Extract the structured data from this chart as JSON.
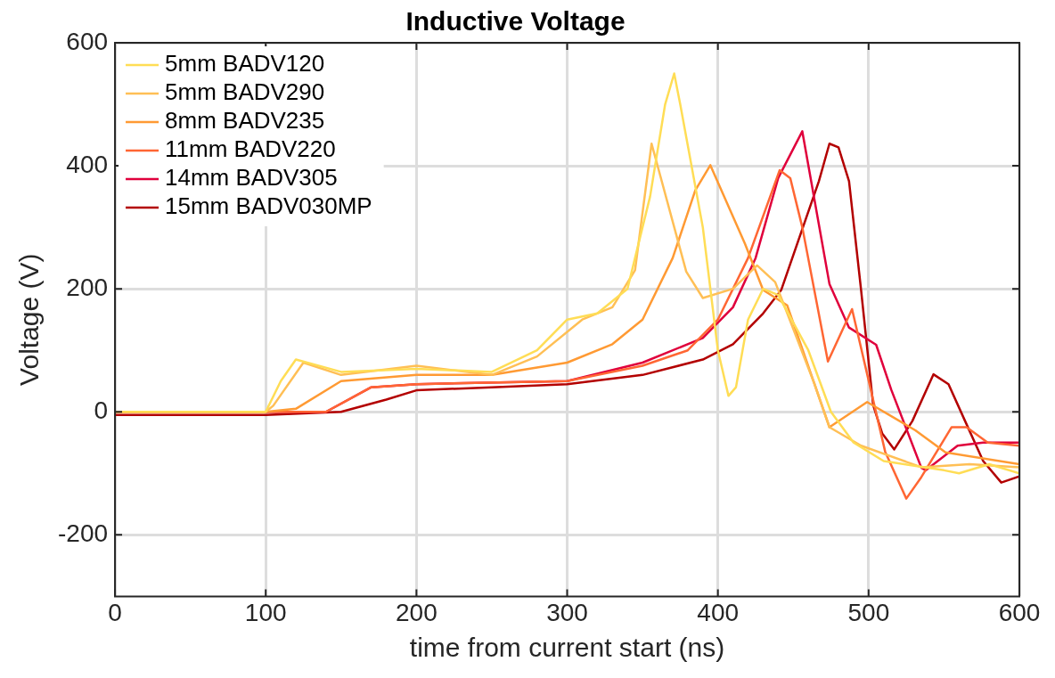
{
  "chart_data": {
    "type": "line",
    "title": "Inductive Voltage",
    "xlabel": "time from current start (ns)",
    "ylabel": "Voltage (V)",
    "xlim": [
      0,
      600
    ],
    "xticks": [
      0,
      100,
      200,
      300,
      400,
      500,
      600
    ],
    "ylim": [
      -300,
      600
    ],
    "yticks": [
      -200,
      0,
      200,
      400,
      600
    ],
    "grid": true,
    "legend": "top left",
    "marker": "none",
    "line_style": "solid",
    "series": [
      {
        "name": "5mm BADV120",
        "color": "#ffdd55",
        "x": [
          0,
          50,
          100,
          110,
          120,
          150,
          200,
          250,
          280,
          300,
          320,
          340,
          355,
          365,
          371,
          375,
          390,
          400,
          407,
          412,
          420,
          430,
          440,
          460,
          475,
          490,
          510,
          550,
          560,
          580,
          600
        ],
        "values": [
          0,
          0,
          0,
          50,
          85,
          65,
          70,
          65,
          100,
          150,
          160,
          200,
          350,
          500,
          550,
          500,
          300,
          100,
          26,
          40,
          150,
          200,
          190,
          100,
          0,
          -50,
          -80,
          -95,
          -100,
          -85,
          -100
        ]
      },
      {
        "name": "5mm BADV290",
        "color": "#ffbf55",
        "x": [
          0,
          50,
          100,
          105,
          125,
          150,
          200,
          250,
          280,
          310,
          330,
          345,
          356,
          379,
          390,
          410,
          426,
          438,
          464,
          474,
          495,
          535,
          567,
          600
        ],
        "values": [
          0,
          0,
          0,
          10,
          80,
          60,
          75,
          60,
          90,
          150,
          170,
          230,
          436,
          228,
          185,
          200,
          238,
          211,
          46,
          -25,
          -55,
          -90,
          -85,
          -90
        ]
      },
      {
        "name": "8mm BADV235",
        "color": "#ff9a33",
        "x": [
          0,
          50,
          100,
          120,
          150,
          200,
          250,
          300,
          330,
          350,
          370,
          385,
          395,
          418,
          430,
          446,
          474,
          499,
          531,
          551,
          600
        ],
        "values": [
          0,
          0,
          0,
          5,
          50,
          60,
          60,
          80,
          110,
          150,
          250,
          360,
          401,
          273,
          198,
          173,
          -25,
          16,
          -30,
          -66,
          -85
        ]
      },
      {
        "name": "11mm BADV220",
        "color": "#ff6633",
        "x": [
          0,
          50,
          100,
          140,
          170,
          200,
          300,
          350,
          380,
          400,
          420,
          441,
          448,
          456,
          473,
          489,
          511,
          525,
          535,
          555,
          565,
          579,
          600
        ],
        "values": [
          0,
          0,
          0,
          0,
          40,
          45,
          50,
          75,
          100,
          150,
          250,
          393,
          380,
          300,
          82,
          167,
          -65,
          -141,
          -106,
          -25,
          -25,
          -50,
          -55
        ]
      },
      {
        "name": "14mm BADV305",
        "color": "#e0003c",
        "x": [
          0,
          50,
          100,
          140,
          170,
          200,
          300,
          350,
          390,
          410,
          425,
          440,
          456,
          474,
          487,
          505,
          515,
          535,
          538,
          559,
          576,
          600
        ],
        "values": [
          0,
          0,
          0,
          0,
          40,
          45,
          50,
          80,
          120,
          170,
          250,
          380,
          456,
          208,
          137,
          109,
          36,
          -91,
          -95,
          -55,
          -50,
          -50
        ]
      },
      {
        "name": "15mm BADV030MP",
        "color": "#b30000",
        "x": [
          0,
          50,
          100,
          150,
          180,
          200,
          250,
          300,
          350,
          390,
          410,
          430,
          442,
          467,
          474,
          480,
          487,
          495,
          503,
          509,
          517,
          529,
          543,
          553,
          564,
          576,
          588,
          600
        ],
        "values": [
          -5,
          -5,
          -5,
          0,
          20,
          35,
          40,
          45,
          60,
          85,
          110,
          160,
          198,
          375,
          436,
          430,
          375,
          198,
          11,
          -35,
          -61,
          -15,
          61,
          45,
          -15,
          -80,
          -115,
          -105
        ]
      }
    ]
  }
}
